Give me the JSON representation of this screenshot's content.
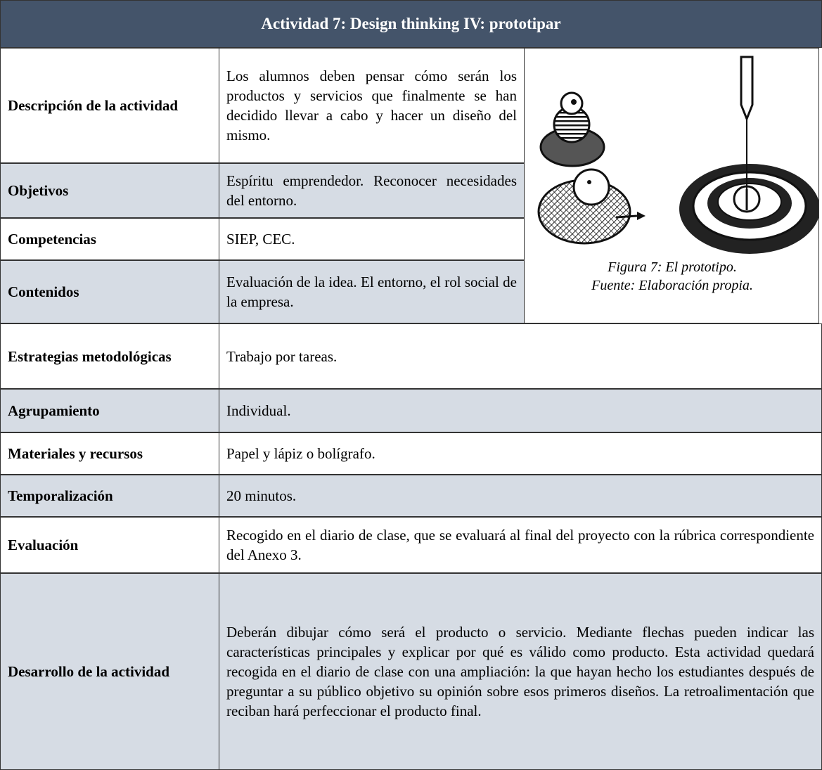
{
  "header": {
    "title": "Actividad 7: Design thinking IV: prototipar"
  },
  "table": {
    "rows": [
      [
        "Descripción de la actividad",
        "Los alumnos deben pensar cómo serán los productos y servicios que finalmente se han decidido llevar a cabo y hacer un diseño del mismo."
      ],
      [
        "Objetivos",
        "Espíritu emprendedor. Reconocer necesidades del entorno."
      ],
      [
        "Competencias",
        "SIEP, CEC."
      ],
      [
        "Contenidos",
        "Evaluación de la idea. El entorno, el rol social de la empresa."
      ],
      [
        "Estrategias metodológicas",
        "Trabajo por tareas."
      ],
      [
        "Agrupamiento",
        "Individual."
      ],
      [
        "Materiales y recursos",
        "Papel y lápiz o bolígrafo."
      ],
      [
        "Temporalización",
        "20 minutos."
      ],
      [
        "Evaluación",
        "Recogido en el diario de clase, que se evaluará al final del proyecto con la rúbrica correspondiente del Anexo 3."
      ],
      [
        "Desarrollo de la actividad",
        "Deberán dibujar cómo será el producto o servicio. Mediante flechas pueden indicar las características principales y explicar por qué es válido como producto. Esta actividad quedará recogida en el diario de clase con una ampliación: la que hayan hecho los estudiantes después de preguntar a su público objetivo su opinión sobre esos primeros diseños. La retroalimentación que reciban hará perfeccionar el producto final."
      ]
    ]
  },
  "figure": {
    "caption": [
      "Figura 7: El prototipo.",
      "Fuente: Elaboración propia."
    ]
  }
}
